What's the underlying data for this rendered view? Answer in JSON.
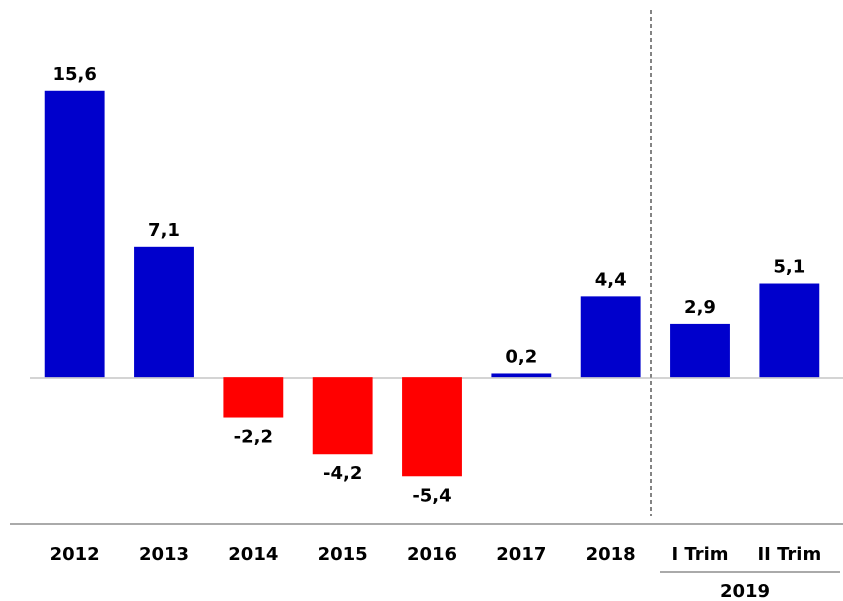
{
  "chart_data": {
    "type": "bar",
    "categories": [
      "2012",
      "2013",
      "2014",
      "2015",
      "2016",
      "2017",
      "2018",
      "I Trim",
      "II Trim"
    ],
    "values": [
      15.6,
      7.1,
      -2.2,
      -4.2,
      -5.4,
      0.2,
      4.4,
      2.9,
      5.1
    ],
    "value_labels": [
      "15,6",
      "7,1",
      "-2,2",
      "-4,2",
      "-5,4",
      "0,2",
      "4,4",
      "2,9",
      "5,1"
    ],
    "group_label": "2019",
    "color": "#0000cc",
    "negative_color": "#ff0000",
    "ylim": [
      -8,
      20
    ]
  }
}
